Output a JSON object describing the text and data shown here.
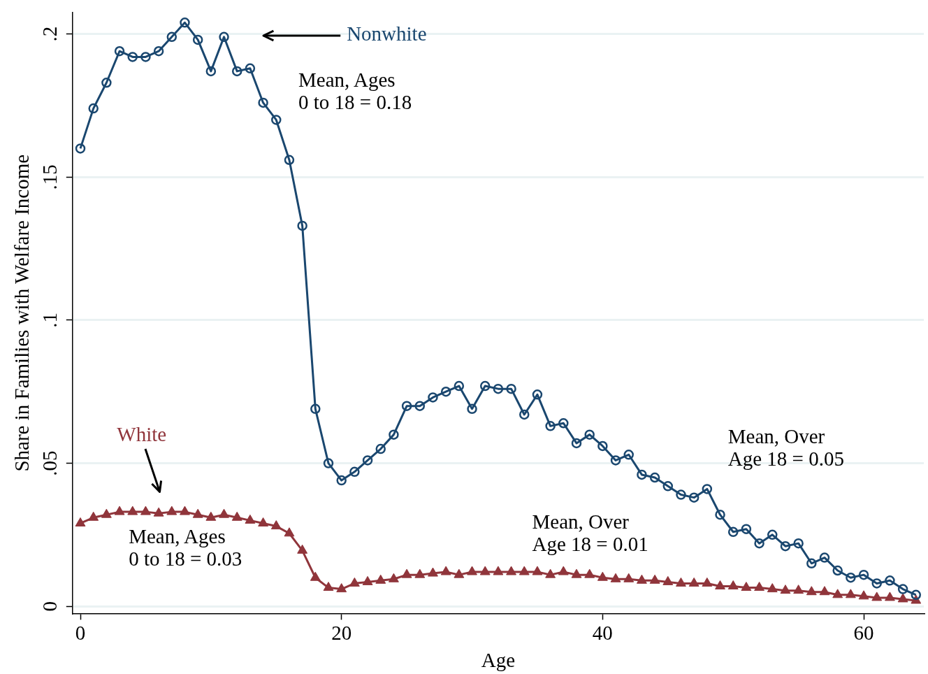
{
  "chart_data": {
    "type": "line",
    "xlabel": "Age",
    "ylabel": "Share in Families with Welfare Income",
    "x": [
      0,
      1,
      2,
      3,
      4,
      5,
      6,
      7,
      8,
      9,
      10,
      11,
      12,
      13,
      14,
      15,
      16,
      17,
      18,
      19,
      20,
      21,
      22,
      23,
      24,
      25,
      26,
      27,
      28,
      29,
      30,
      31,
      32,
      33,
      34,
      35,
      36,
      37,
      38,
      39,
      40,
      41,
      42,
      43,
      44,
      45,
      46,
      47,
      48,
      49,
      50,
      51,
      52,
      53,
      54,
      55,
      56,
      57,
      58,
      59,
      60,
      61,
      62,
      63,
      64
    ],
    "series": [
      {
        "name": "Nonwhite",
        "color": "#1a476f",
        "marker": "circle",
        "values": [
          0.16,
          0.174,
          0.183,
          0.194,
          0.192,
          0.192,
          0.194,
          0.199,
          0.204,
          0.198,
          0.187,
          0.199,
          0.187,
          0.188,
          0.176,
          0.17,
          0.156,
          0.133,
          0.069,
          0.05,
          0.044,
          0.047,
          0.051,
          0.055,
          0.06,
          0.07,
          0.07,
          0.073,
          0.075,
          0.077,
          0.069,
          0.077,
          0.076,
          0.076,
          0.067,
          0.074,
          0.063,
          0.064,
          0.057,
          0.06,
          0.056,
          0.051,
          0.053,
          0.046,
          0.045,
          0.042,
          0.039,
          0.038,
          0.041,
          0.032,
          0.026,
          0.027,
          0.022,
          0.025,
          0.021,
          0.022,
          0.015,
          0.017,
          0.0125,
          0.01,
          0.011,
          0.008,
          0.009,
          0.006,
          0.004
        ]
      },
      {
        "name": "White",
        "color": "#90353b",
        "marker": "triangle",
        "values": [
          0.029,
          0.031,
          0.032,
          0.033,
          0.033,
          0.033,
          0.0325,
          0.033,
          0.033,
          0.032,
          0.031,
          0.032,
          0.031,
          0.03,
          0.029,
          0.028,
          0.0255,
          0.0195,
          0.01,
          0.0065,
          0.006,
          0.008,
          0.0085,
          0.009,
          0.0095,
          0.011,
          0.011,
          0.0115,
          0.012,
          0.011,
          0.012,
          0.012,
          0.012,
          0.012,
          0.012,
          0.012,
          0.011,
          0.012,
          0.011,
          0.011,
          0.01,
          0.0095,
          0.0095,
          0.009,
          0.009,
          0.0085,
          0.008,
          0.008,
          0.008,
          0.007,
          0.007,
          0.0065,
          0.0065,
          0.006,
          0.0055,
          0.0055,
          0.005,
          0.005,
          0.004,
          0.004,
          0.0035,
          0.003,
          0.003,
          0.0025,
          0.002
        ]
      }
    ],
    "annotations": [
      "Mean, Ages\n0 to 18 = 0.18",
      "Mean, Over\nAge 18 = 0.05",
      "Mean, Over\nAge 18 = 0.01",
      "Mean, Ages\n0 to 18 = 0.03"
    ],
    "xlim": [
      -0.6,
      64.6
    ],
    "xticks": [
      0,
      20,
      40,
      60
    ],
    "ylim": [
      -0.0025,
      0.2075
    ],
    "yticks": [
      {
        "value": 0,
        "label": "0"
      },
      {
        "value": 0.05,
        "label": ".05"
      },
      {
        "value": 0.1,
        "label": ".1"
      },
      {
        "value": 0.15,
        "label": ".15"
      },
      {
        "value": 0.2,
        "label": ".2"
      }
    ],
    "grid": "y",
    "legend": false,
    "line_style": "solid"
  }
}
